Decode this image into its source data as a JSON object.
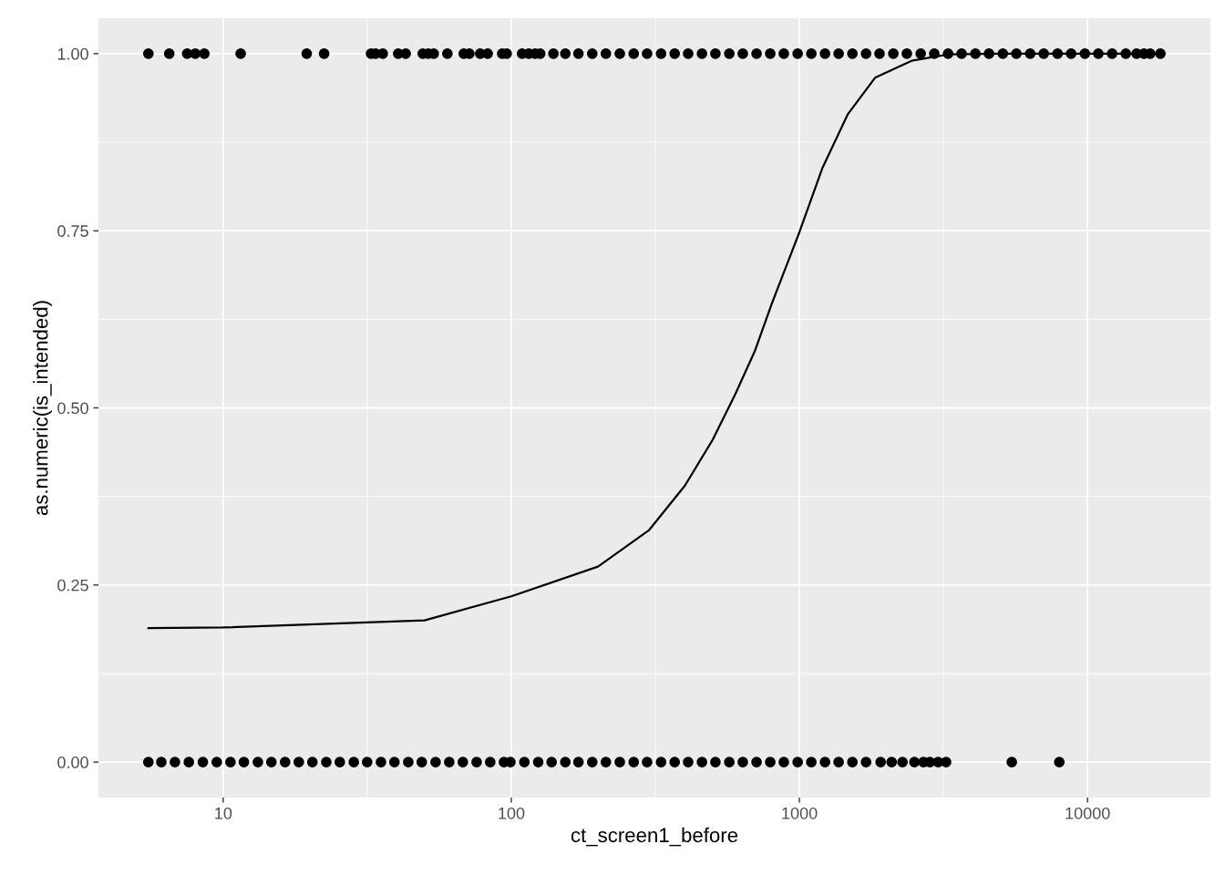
{
  "chart_data": {
    "type": "scatter",
    "xlabel": "ct_screen1_before",
    "ylabel": "as.numeric(is_intended)",
    "log": "x",
    "grid": true,
    "marker": "circle",
    "xlim": [
      3.69,
      26700
    ],
    "xticks": [
      10,
      100,
      1000,
      10000
    ],
    "ylim": [
      -0.05,
      1.05
    ],
    "yticks": [
      {
        "value": 0,
        "label": "0.00"
      },
      {
        "value": 0.25,
        "label": "0.25"
      },
      {
        "value": 0.5,
        "label": "0.50"
      },
      {
        "value": 0.75,
        "label": "0.75"
      },
      {
        "value": 1,
        "label": "1.00"
      }
    ],
    "series": [
      {
        "color": "#000000",
        "x": [
          5.5,
          6.5,
          7.5,
          8.0,
          8.6,
          11.5,
          19.5,
          22.4,
          32.6,
          33.8,
          35.8,
          40.5,
          43,
          49.3,
          51.5,
          53.8,
          60,
          68.4,
          71.5,
          78,
          82.8,
          93,
          96.4,
          109,
          115,
          121,
          126,
          140,
          154,
          171,
          191,
          213,
          238,
          266,
          296,
          331,
          369,
          411,
          459,
          511,
          571,
          636,
          710,
          792,
          883,
          986,
          1100,
          1227,
          1368,
          1527,
          1703,
          1897,
          2118,
          2360,
          2636,
          2938,
          3281,
          3656,
          4083,
          4550,
          5082,
          5662,
          6324,
          7047,
          7870,
          8770,
          9790,
          10900,
          12170,
          13580,
          14800,
          15700,
          16500,
          17900
        ],
        "values": [
          1,
          1,
          1,
          1,
          1,
          1,
          1,
          1,
          1,
          1,
          1,
          1,
          1,
          1,
          1,
          1,
          1,
          1,
          1,
          1,
          1,
          1,
          1,
          1,
          1,
          1,
          1,
          1,
          1,
          1,
          1,
          1,
          1,
          1,
          1,
          1,
          1,
          1,
          1,
          1,
          1,
          1,
          1,
          1,
          1,
          1,
          1,
          1,
          1,
          1,
          1,
          1,
          1,
          1,
          1,
          1,
          1,
          1,
          1,
          1,
          1,
          1,
          1,
          1,
          1,
          1,
          1,
          1,
          1,
          1,
          1,
          1,
          1,
          1
        ]
      },
      {
        "color": "#000000",
        "x": [
          5.5,
          6.1,
          6.8,
          7.6,
          8.5,
          9.5,
          10.6,
          11.8,
          13.2,
          14.7,
          16.4,
          18.3,
          20.4,
          22.8,
          25.4,
          28.4,
          31.6,
          35.3,
          39.3,
          43.9,
          48.9,
          54.6,
          60.9,
          67.9,
          75.8,
          84.5,
          94.3,
          99.3,
          111,
          124,
          138,
          154,
          171,
          191,
          213,
          238,
          266,
          296,
          331,
          369,
          411,
          459,
          511,
          571,
          636,
          710,
          792,
          883,
          986,
          1100,
          1227,
          1368,
          1527,
          1703,
          1914,
          2090,
          2279,
          2507,
          2694,
          2837,
          3030,
          3228,
          5460,
          7980
        ],
        "values": [
          0,
          0,
          0,
          0,
          0,
          0,
          0,
          0,
          0,
          0,
          0,
          0,
          0,
          0,
          0,
          0,
          0,
          0,
          0,
          0,
          0,
          0,
          0,
          0,
          0,
          0,
          0,
          0,
          0,
          0,
          0,
          0,
          0,
          0,
          0,
          0,
          0,
          0,
          0,
          0,
          0,
          0,
          0,
          0,
          0,
          0,
          0,
          0,
          0,
          0,
          0,
          0,
          0,
          0,
          0,
          0,
          0,
          0,
          0,
          0,
          0,
          0,
          0,
          0
        ]
      },
      {
        "type": "line",
        "color": "#000000",
        "marker": "none",
        "x": [
          5.5,
          10,
          50,
          100,
          200,
          300,
          400,
          500,
          600,
          700,
          800,
          900,
          1000,
          1200,
          1470,
          1830,
          2450,
          3300,
          5000,
          10000,
          17900
        ],
        "values": [
          0.189,
          0.19,
          0.2,
          0.234,
          0.276,
          0.327,
          0.39,
          0.455,
          0.52,
          0.58,
          0.646,
          0.7,
          0.748,
          0.838,
          0.914,
          0.966,
          0.99,
          0.999,
          1.0,
          1.0,
          1.0
        ]
      }
    ]
  }
}
